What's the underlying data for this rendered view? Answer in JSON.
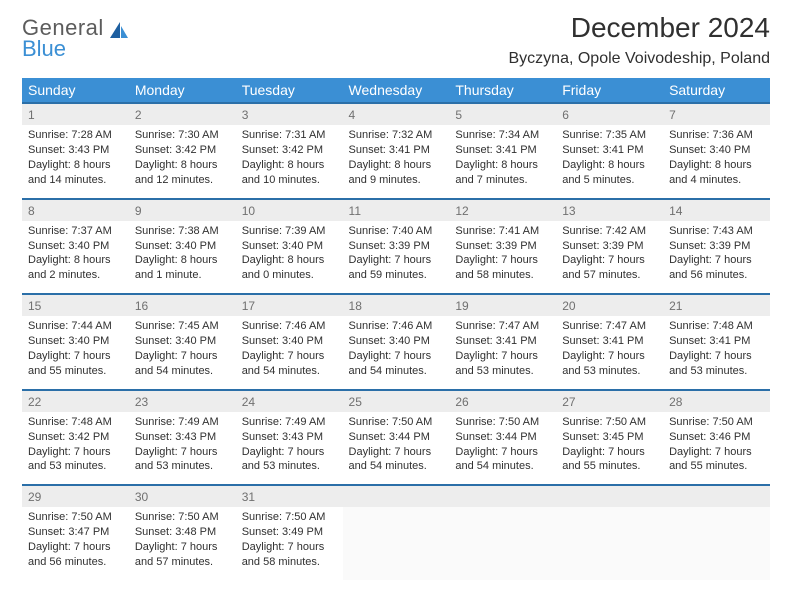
{
  "brand": {
    "name_top": "General",
    "name_bottom": "Blue"
  },
  "title": "December 2024",
  "location": "Byczyna, Opole Voivodeship, Poland",
  "colors": {
    "header_bg": "#3b8fd4",
    "header_text": "#ffffff",
    "row_divider": "#2b6fa8",
    "daynum_bg": "#ededed",
    "daynum_text": "#707070",
    "body_text": "#303030",
    "logo_gray": "#5c5c5c",
    "logo_blue": "#3b8fd4"
  },
  "weekdays": [
    "Sunday",
    "Monday",
    "Tuesday",
    "Wednesday",
    "Thursday",
    "Friday",
    "Saturday"
  ],
  "weeks": [
    [
      {
        "n": "1",
        "sr": "7:28 AM",
        "ss": "3:43 PM",
        "dl": "8 hours and 14 minutes."
      },
      {
        "n": "2",
        "sr": "7:30 AM",
        "ss": "3:42 PM",
        "dl": "8 hours and 12 minutes."
      },
      {
        "n": "3",
        "sr": "7:31 AM",
        "ss": "3:42 PM",
        "dl": "8 hours and 10 minutes."
      },
      {
        "n": "4",
        "sr": "7:32 AM",
        "ss": "3:41 PM",
        "dl": "8 hours and 9 minutes."
      },
      {
        "n": "5",
        "sr": "7:34 AM",
        "ss": "3:41 PM",
        "dl": "8 hours and 7 minutes."
      },
      {
        "n": "6",
        "sr": "7:35 AM",
        "ss": "3:41 PM",
        "dl": "8 hours and 5 minutes."
      },
      {
        "n": "7",
        "sr": "7:36 AM",
        "ss": "3:40 PM",
        "dl": "8 hours and 4 minutes."
      }
    ],
    [
      {
        "n": "8",
        "sr": "7:37 AM",
        "ss": "3:40 PM",
        "dl": "8 hours and 2 minutes."
      },
      {
        "n": "9",
        "sr": "7:38 AM",
        "ss": "3:40 PM",
        "dl": "8 hours and 1 minute."
      },
      {
        "n": "10",
        "sr": "7:39 AM",
        "ss": "3:40 PM",
        "dl": "8 hours and 0 minutes."
      },
      {
        "n": "11",
        "sr": "7:40 AM",
        "ss": "3:39 PM",
        "dl": "7 hours and 59 minutes."
      },
      {
        "n": "12",
        "sr": "7:41 AM",
        "ss": "3:39 PM",
        "dl": "7 hours and 58 minutes."
      },
      {
        "n": "13",
        "sr": "7:42 AM",
        "ss": "3:39 PM",
        "dl": "7 hours and 57 minutes."
      },
      {
        "n": "14",
        "sr": "7:43 AM",
        "ss": "3:39 PM",
        "dl": "7 hours and 56 minutes."
      }
    ],
    [
      {
        "n": "15",
        "sr": "7:44 AM",
        "ss": "3:40 PM",
        "dl": "7 hours and 55 minutes."
      },
      {
        "n": "16",
        "sr": "7:45 AM",
        "ss": "3:40 PM",
        "dl": "7 hours and 54 minutes."
      },
      {
        "n": "17",
        "sr": "7:46 AM",
        "ss": "3:40 PM",
        "dl": "7 hours and 54 minutes."
      },
      {
        "n": "18",
        "sr": "7:46 AM",
        "ss": "3:40 PM",
        "dl": "7 hours and 54 minutes."
      },
      {
        "n": "19",
        "sr": "7:47 AM",
        "ss": "3:41 PM",
        "dl": "7 hours and 53 minutes."
      },
      {
        "n": "20",
        "sr": "7:47 AM",
        "ss": "3:41 PM",
        "dl": "7 hours and 53 minutes."
      },
      {
        "n": "21",
        "sr": "7:48 AM",
        "ss": "3:41 PM",
        "dl": "7 hours and 53 minutes."
      }
    ],
    [
      {
        "n": "22",
        "sr": "7:48 AM",
        "ss": "3:42 PM",
        "dl": "7 hours and 53 minutes."
      },
      {
        "n": "23",
        "sr": "7:49 AM",
        "ss": "3:43 PM",
        "dl": "7 hours and 53 minutes."
      },
      {
        "n": "24",
        "sr": "7:49 AM",
        "ss": "3:43 PM",
        "dl": "7 hours and 53 minutes."
      },
      {
        "n": "25",
        "sr": "7:50 AM",
        "ss": "3:44 PM",
        "dl": "7 hours and 54 minutes."
      },
      {
        "n": "26",
        "sr": "7:50 AM",
        "ss": "3:44 PM",
        "dl": "7 hours and 54 minutes."
      },
      {
        "n": "27",
        "sr": "7:50 AM",
        "ss": "3:45 PM",
        "dl": "7 hours and 55 minutes."
      },
      {
        "n": "28",
        "sr": "7:50 AM",
        "ss": "3:46 PM",
        "dl": "7 hours and 55 minutes."
      }
    ],
    [
      {
        "n": "29",
        "sr": "7:50 AM",
        "ss": "3:47 PM",
        "dl": "7 hours and 56 minutes."
      },
      {
        "n": "30",
        "sr": "7:50 AM",
        "ss": "3:48 PM",
        "dl": "7 hours and 57 minutes."
      },
      {
        "n": "31",
        "sr": "7:50 AM",
        "ss": "3:49 PM",
        "dl": "7 hours and 58 minutes."
      },
      null,
      null,
      null,
      null
    ]
  ],
  "labels": {
    "sunrise": "Sunrise:",
    "sunset": "Sunset:",
    "daylight": "Daylight:"
  }
}
